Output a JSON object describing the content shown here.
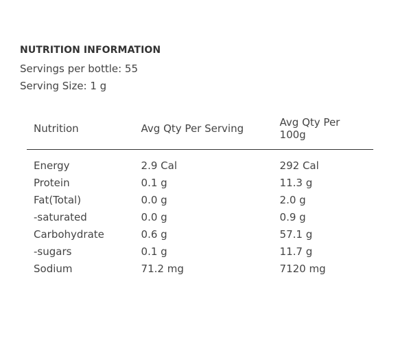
{
  "header": {
    "title": "NUTRITION INFORMATION",
    "servings": "Servings per bottle: 55",
    "serving_size": "Serving Size: 1 g"
  },
  "table": {
    "columns": [
      "Nutrition",
      "Avg Qty Per Serving",
      "Avg Qty Per 100g"
    ],
    "rows": [
      [
        "Energy",
        "2.9 Cal",
        "292 Cal"
      ],
      [
        "Protein",
        "0.1 g",
        "11.3 g"
      ],
      [
        "Fat(Total)",
        "0.0 g",
        "2.0 g"
      ],
      [
        "-saturated",
        "0.0 g",
        "0.9 g"
      ],
      [
        "Carbohydrate",
        "0.6 g",
        "57.1 g"
      ],
      [
        "-sugars",
        "0.1 g",
        "11.7 g"
      ],
      [
        "Sodium",
        "71.2 mg",
        "7120 mg"
      ]
    ]
  }
}
